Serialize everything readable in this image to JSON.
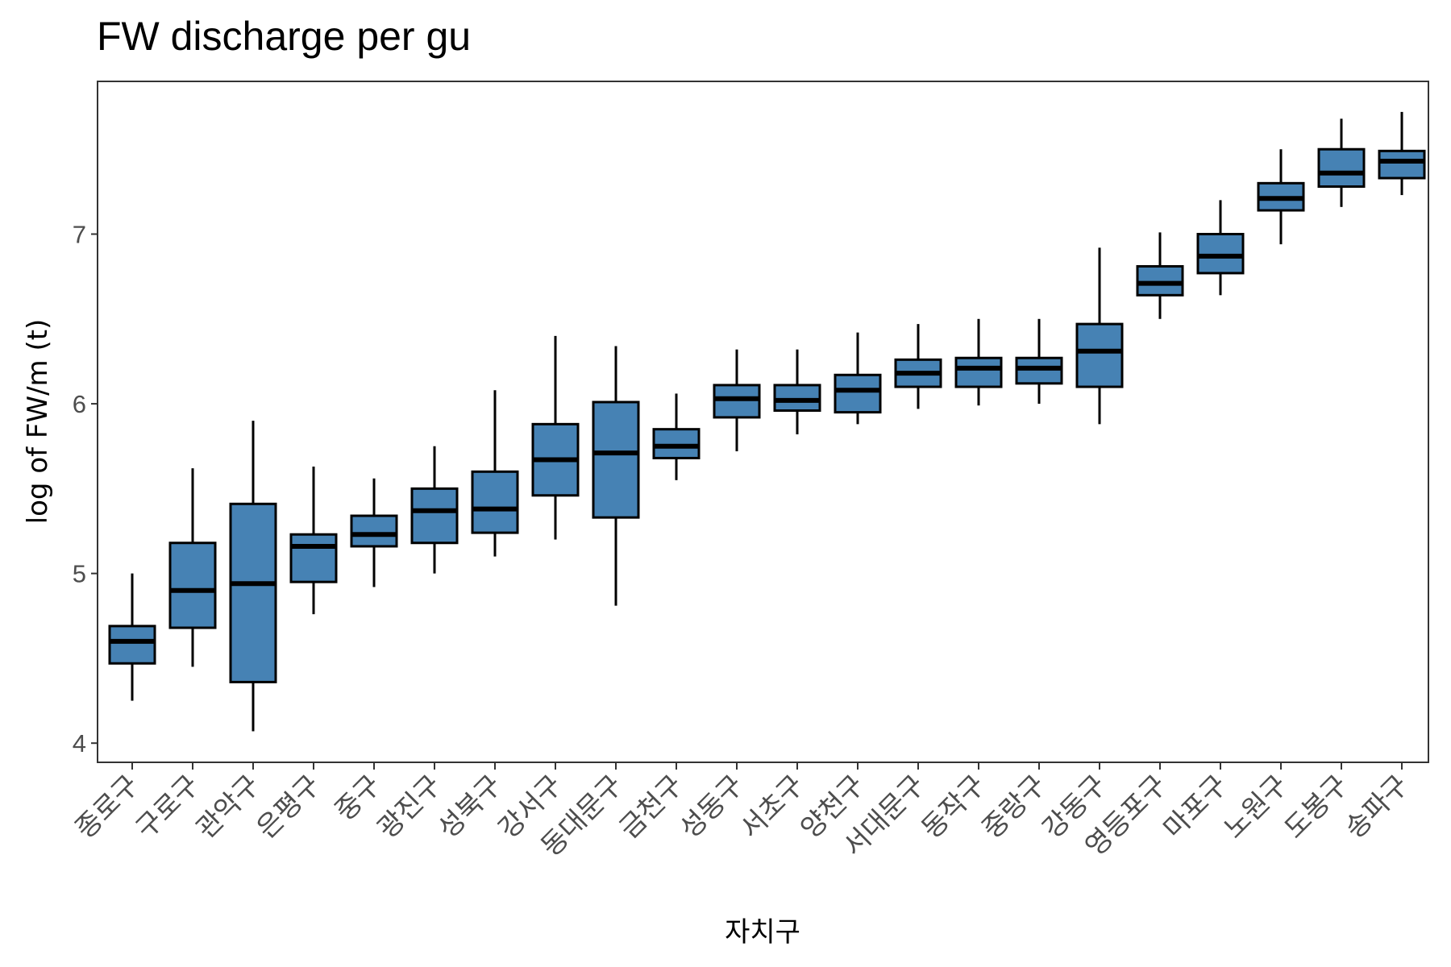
{
  "chart_data": {
    "type": "box",
    "title": "FW discharge per gu",
    "xlabel": "자치구",
    "ylabel": "log of FW/m (t)",
    "ylim": [
      3.9,
      7.9
    ],
    "yticks": [
      4,
      5,
      6,
      7
    ],
    "grid": false,
    "box_fill": "#4682B4",
    "box_stroke": "#000000",
    "categories": [
      "종로구",
      "구로구",
      "관악구",
      "은평구",
      "중구",
      "광진구",
      "성북구",
      "강서구",
      "동대문구",
      "금천구",
      "성동구",
      "서초구",
      "양천구",
      "서대문구",
      "동작구",
      "중랑구",
      "강동구",
      "영등포구",
      "마포구",
      "노원구",
      "도봉구",
      "송파구"
    ],
    "series": [
      {
        "whisker_low": [
          4.25,
          4.45,
          4.07,
          4.76,
          4.92,
          5.0,
          5.1,
          5.2,
          4.81,
          5.55,
          5.72,
          5.82,
          5.88,
          5.97,
          5.99,
          6.0,
          5.88,
          6.5,
          6.64,
          6.94,
          7.16,
          7.23
        ],
        "q1": [
          4.47,
          4.68,
          4.36,
          4.95,
          5.16,
          5.18,
          5.24,
          5.46,
          5.33,
          5.68,
          5.92,
          5.96,
          5.95,
          6.1,
          6.1,
          6.12,
          6.1,
          6.64,
          6.77,
          7.14,
          7.28,
          7.33
        ],
        "median": [
          4.6,
          4.9,
          4.94,
          5.16,
          5.23,
          5.37,
          5.38,
          5.67,
          5.71,
          5.75,
          6.03,
          6.02,
          6.08,
          6.18,
          6.21,
          6.21,
          6.31,
          6.71,
          6.87,
          7.21,
          7.36,
          7.43
        ],
        "q3": [
          4.69,
          5.18,
          5.41,
          5.23,
          5.34,
          5.5,
          5.6,
          5.88,
          6.01,
          5.85,
          6.11,
          6.11,
          6.17,
          6.26,
          6.27,
          6.27,
          6.47,
          6.81,
          7.0,
          7.3,
          7.5,
          7.49
        ],
        "whisker_high": [
          5.0,
          5.62,
          5.9,
          5.63,
          5.56,
          5.75,
          6.08,
          6.4,
          6.34,
          6.06,
          6.32,
          6.32,
          6.42,
          6.47,
          6.5,
          6.5,
          6.92,
          7.01,
          7.2,
          7.5,
          7.68,
          7.72
        ]
      }
    ]
  }
}
